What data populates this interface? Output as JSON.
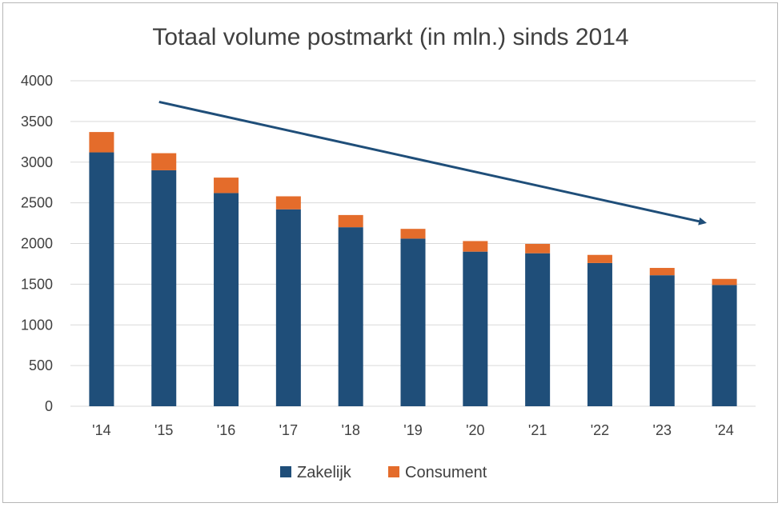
{
  "chart_data": {
    "type": "bar",
    "stacked": true,
    "title": "Totaal volume postmarkt (in mln.) sinds 2014",
    "xlabel": "",
    "ylabel": "",
    "categories": [
      "'14",
      "'15",
      "'16",
      "'17",
      "'18",
      "'19",
      "'20",
      "'21",
      "'22",
      "'23",
      "'24"
    ],
    "series": [
      {
        "name": "Zakelijk",
        "color": "#1f4e79",
        "values": [
          3120,
          2900,
          2620,
          2420,
          2200,
          2060,
          1900,
          1880,
          1760,
          1610,
          1490
        ]
      },
      {
        "name": "Consument",
        "color": "#e46c2b",
        "values": [
          250,
          210,
          190,
          160,
          150,
          120,
          130,
          115,
          100,
          90,
          75
        ]
      }
    ],
    "ylim": [
      0,
      4000
    ],
    "yticks": [
      0,
      500,
      1000,
      1500,
      2000,
      2500,
      3000,
      3500,
      4000
    ],
    "grid": true,
    "legend": "bottom",
    "trend_arrow": {
      "from": {
        "category": "'15",
        "value": 3740
      },
      "to": {
        "category": "'24",
        "value": 2260
      },
      "color": "#1f4e79"
    }
  }
}
